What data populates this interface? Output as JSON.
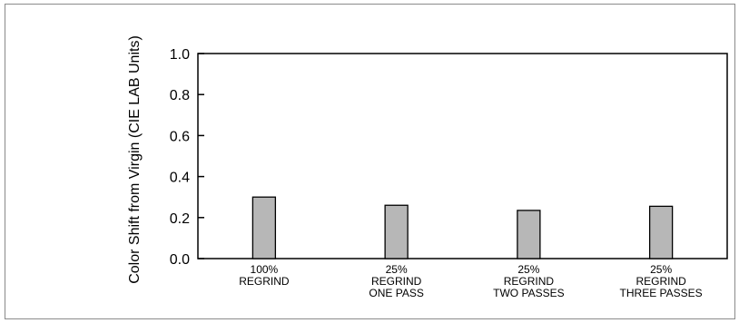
{
  "chart_data": {
    "type": "bar",
    "categories": [
      [
        "100%",
        "REGRIND"
      ],
      [
        "25%",
        "REGRIND",
        "ONE PASS"
      ],
      [
        "25%",
        "REGRIND",
        "TWO PASSES"
      ],
      [
        "25%",
        "REGRIND",
        "THREE PASSES"
      ]
    ],
    "values": [
      0.3,
      0.26,
      0.235,
      0.255
    ],
    "title": "",
    "xlabel": "",
    "ylabel": "Color Shift from Virgin (CIE LAB Units)",
    "ylim": [
      0.0,
      1.0
    ],
    "yticks": [
      "0.0",
      "0.2",
      "0.4",
      "0.6",
      "0.8",
      "1.0"
    ],
    "grid": false,
    "colors": {
      "bar_fill": "#b7b7b7",
      "bar_stroke": "#000000",
      "axis": "#000000",
      "frame": "#8a8a8a"
    }
  }
}
